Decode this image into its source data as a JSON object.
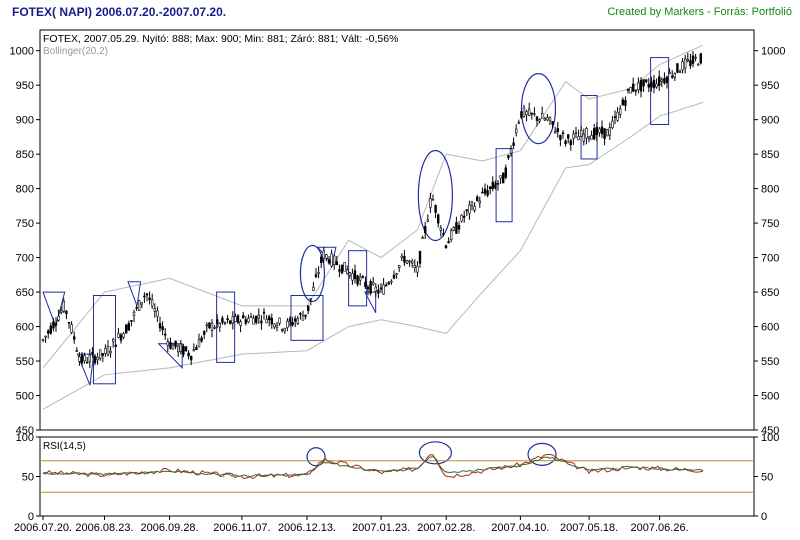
{
  "header": {
    "title": "FOTEX( NAPI)  2006.07.20.-2007.07.20.",
    "credit": "Created by Markers - Forrás: Portfolió"
  },
  "colors": {
    "candles": "#000000",
    "bollinger": "#b8b8b8",
    "rsi_line": "#b22222",
    "rsi_signal": "#2f6f2f",
    "rsi_levels": "#c08a2a",
    "markers": "#1f2f9f",
    "title": "#1a1a8c",
    "credit": "#138a13"
  },
  "chart_data": [
    {
      "type": "candlestick",
      "info_line": "FOTEX, 2007.05.29. Nyitó: 888; Max: 900; Min: 881; Záró: 881; Vált: -0,56%",
      "indicator_label": "Bollinger(20,2)",
      "ylim": [
        450,
        1030
      ],
      "yticks": [
        "450",
        "500",
        "550",
        "600",
        "650",
        "700",
        "750",
        "800",
        "850",
        "900",
        "950",
        "1000"
      ],
      "xticks": [
        "2006.07.20.",
        "2006.08.23.",
        "2006.09.28.",
        "2006.11.07.",
        "2006.12.13.",
        "2007.01.23.",
        "2007.02.28.",
        "2007.04.10.",
        "2007.05.18.",
        "2007.06.26."
      ],
      "grid": false,
      "series": [
        {
          "role": "close",
          "x": [
            "2006.07.20.",
            "2006.08.01.",
            "2006.08.10.",
            "2006.08.23.",
            "2006.09.05.",
            "2006.09.15.",
            "2006.09.28.",
            "2006.10.10.",
            "2006.10.20.",
            "2006.11.07.",
            "2006.11.20.",
            "2006.12.01.",
            "2006.12.13.",
            "2006.12.22.",
            "2007.01.05.",
            "2007.01.15.",
            "2007.01.23.",
            "2007.02.05.",
            "2007.02.12.",
            "2007.02.20.",
            "2007.02.28.",
            "2007.03.10.",
            "2007.03.20.",
            "2007.04.01.",
            "2007.04.10.",
            "2007.04.25.",
            "2007.05.05.",
            "2007.05.18.",
            "2007.05.29.",
            "2007.06.10.",
            "2007.06.26.",
            "2007.07.10.",
            "2007.07.20."
          ],
          "values": [
            580,
            630,
            550,
            560,
            600,
            650,
            575,
            560,
            600,
            610,
            615,
            600,
            620,
            705,
            680,
            660,
            650,
            700,
            680,
            790,
            720,
            760,
            790,
            815,
            910,
            900,
            870,
            880,
            881,
            945,
            955,
            980,
            990
          ]
        },
        {
          "role": "bollinger_upper",
          "x": [
            "2006.07.20.",
            "2006.08.23.",
            "2006.09.28.",
            "2006.11.07.",
            "2006.12.13.",
            "2007.01.05.",
            "2007.01.23.",
            "2007.02.12.",
            "2007.02.28.",
            "2007.03.20.",
            "2007.04.10.",
            "2007.05.05.",
            "2007.05.18.",
            "2007.06.10.",
            "2007.06.26.",
            "2007.07.20."
          ],
          "values": [
            540,
            650,
            670,
            630,
            630,
            725,
            700,
            740,
            850,
            840,
            855,
            955,
            930,
            945,
            980,
            1008
          ]
        },
        {
          "role": "bollinger_lower",
          "x": [
            "2006.07.20.",
            "2006.08.23.",
            "2006.09.28.",
            "2006.11.07.",
            "2006.12.13.",
            "2007.01.05.",
            "2007.01.23.",
            "2007.02.12.",
            "2007.02.28.",
            "2007.03.20.",
            "2007.04.10.",
            "2007.05.05.",
            "2007.05.18.",
            "2007.06.10.",
            "2007.06.26.",
            "2007.07.20."
          ],
          "values": [
            480,
            530,
            540,
            560,
            565,
            600,
            610,
            600,
            590,
            650,
            710,
            830,
            835,
            875,
            905,
            925
          ]
        }
      ]
    },
    {
      "type": "line",
      "indicator_label": "RSI(14,5)",
      "ylim": [
        0,
        100
      ],
      "yticks": [
        "0",
        "50",
        "100"
      ],
      "levels": [
        30,
        70
      ],
      "series": [
        {
          "role": "rsi",
          "x": [
            "2006.07.20.",
            "2006.08.23.",
            "2006.09.28.",
            "2006.11.07.",
            "2006.12.13.",
            "2006.12.22.",
            "2007.01.23.",
            "2007.02.12.",
            "2007.02.20.",
            "2007.02.28.",
            "2007.04.10.",
            "2007.04.25.",
            "2007.05.18.",
            "2007.06.10.",
            "2007.06.26.",
            "2007.07.20."
          ],
          "values": [
            55,
            52,
            58,
            50,
            52,
            72,
            55,
            60,
            82,
            50,
            65,
            78,
            56,
            62,
            60,
            58
          ]
        },
        {
          "role": "rsi_signal",
          "x": [
            "2006.07.20.",
            "2006.08.23.",
            "2006.09.28.",
            "2006.11.07.",
            "2006.12.13.",
            "2006.12.22.",
            "2007.01.23.",
            "2007.02.12.",
            "2007.02.20.",
            "2007.02.28.",
            "2007.04.10.",
            "2007.04.25.",
            "2007.05.18.",
            "2007.06.10.",
            "2007.06.26.",
            "2007.07.20."
          ],
          "values": [
            54,
            53,
            56,
            51,
            52,
            68,
            56,
            60,
            78,
            54,
            64,
            75,
            58,
            61,
            60,
            58
          ]
        }
      ]
    }
  ]
}
